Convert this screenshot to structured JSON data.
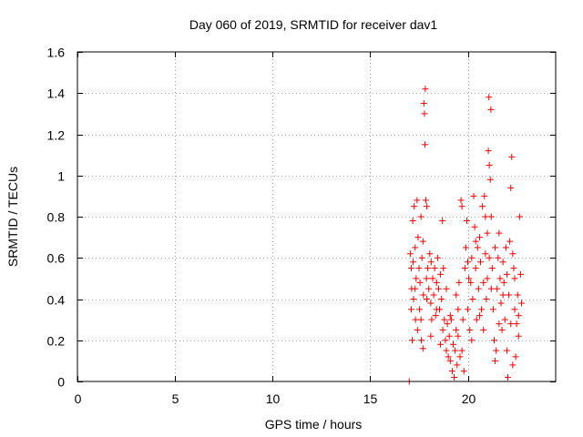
{
  "chart_data": {
    "type": "scatter",
    "title": "Day 060 of 2019, SRMTID for receiver dav1",
    "xlabel": "GPS time / hours",
    "ylabel": "SRMTID / TECUs",
    "xlim": [
      0,
      24.5
    ],
    "ylim": [
      0,
      1.6
    ],
    "xticks": [
      0,
      5,
      10,
      15,
      20
    ],
    "xtick_labels": [
      "0",
      "5",
      "10",
      "15",
      "20"
    ],
    "yticks": [
      0,
      0.2,
      0.4,
      0.6,
      0.8,
      1.0,
      1.2,
      1.4,
      1.6
    ],
    "ytick_labels": [
      "0",
      "0.2",
      "0.4",
      "0.6",
      "0.8",
      "1",
      "1.2",
      "1.4",
      "1.6"
    ],
    "grid": true,
    "marker": "+",
    "marker_color": "#ff0000",
    "series": [
      {
        "name": "dav1",
        "points": [
          [
            17.0,
            0.0
          ],
          [
            17.05,
            0.62
          ],
          [
            17.1,
            0.35
          ],
          [
            17.12,
            0.45
          ],
          [
            17.15,
            0.2
          ],
          [
            17.18,
            0.78
          ],
          [
            17.2,
            0.58
          ],
          [
            17.22,
            0.4
          ],
          [
            17.25,
            0.85
          ],
          [
            17.3,
            0.65
          ],
          [
            17.32,
            0.3
          ],
          [
            17.35,
            0.5
          ],
          [
            17.4,
            0.88
          ],
          [
            17.42,
            0.25
          ],
          [
            17.45,
            0.7
          ],
          [
            17.5,
            0.55
          ],
          [
            17.52,
            0.35
          ],
          [
            17.55,
            0.48
          ],
          [
            17.6,
            0.8
          ],
          [
            17.62,
            0.2
          ],
          [
            17.65,
            0.6
          ],
          [
            17.7,
            0.16
          ],
          [
            17.72,
            0.42
          ],
          [
            17.75,
            1.35
          ],
          [
            17.78,
            1.3
          ],
          [
            17.8,
            1.15
          ],
          [
            17.82,
            1.42
          ],
          [
            17.85,
            0.88
          ],
          [
            17.88,
            0.5
          ],
          [
            17.9,
            0.85
          ],
          [
            17.95,
            0.55
          ],
          [
            18.0,
            0.45
          ],
          [
            18.05,
            0.62
          ],
          [
            18.1,
            0.38
          ],
          [
            18.12,
            0.58
          ],
          [
            18.15,
            0.3
          ],
          [
            18.2,
            0.5
          ],
          [
            18.25,
            0.42
          ],
          [
            18.3,
            0.55
          ],
          [
            18.35,
            0.32
          ],
          [
            18.4,
            0.48
          ],
          [
            18.45,
            0.6
          ],
          [
            18.5,
            0.45
          ],
          [
            18.55,
            0.35
          ],
          [
            18.6,
            0.52
          ],
          [
            18.65,
            0.4
          ],
          [
            18.7,
            0.78
          ],
          [
            18.72,
            0.25
          ],
          [
            18.75,
            0.55
          ],
          [
            18.8,
            0.3
          ],
          [
            18.85,
            0.2
          ],
          [
            18.9,
            0.15
          ],
          [
            18.95,
            0.28
          ],
          [
            19.0,
            0.12
          ],
          [
            19.05,
            0.22
          ],
          [
            19.1,
            0.1
          ],
          [
            19.15,
            0.3
          ],
          [
            19.2,
            0.05
          ],
          [
            19.25,
            0.18
          ],
          [
            19.3,
            0.02
          ],
          [
            19.35,
            0.15
          ],
          [
            19.4,
            0.25
          ],
          [
            19.45,
            0.08
          ],
          [
            19.5,
            0.35
          ],
          [
            19.55,
            0.48
          ],
          [
            19.6,
            0.12
          ],
          [
            19.65,
            0.88
          ],
          [
            19.7,
            0.85
          ],
          [
            19.75,
            0.3
          ],
          [
            19.8,
            0.05
          ],
          [
            19.85,
            0.55
          ],
          [
            19.9,
            0.65
          ],
          [
            19.95,
            0.78
          ],
          [
            20.0,
            0.35
          ],
          [
            20.05,
            0.5
          ],
          [
            20.1,
            0.25
          ],
          [
            20.15,
            0.48
          ],
          [
            20.2,
            0.6
          ],
          [
            20.25,
            0.4
          ],
          [
            20.3,
            0.9
          ],
          [
            20.35,
            0.75
          ],
          [
            20.4,
            0.55
          ],
          [
            20.45,
            0.3
          ],
          [
            20.5,
            0.65
          ],
          [
            20.55,
            0.45
          ],
          [
            20.6,
            0.7
          ],
          [
            20.65,
            0.58
          ],
          [
            20.7,
            0.35
          ],
          [
            20.75,
            0.85
          ],
          [
            20.8,
            0.48
          ],
          [
            20.85,
            0.9
          ],
          [
            20.9,
            0.62
          ],
          [
            20.95,
            0.4
          ],
          [
            21.0,
            0.72
          ],
          [
            21.05,
            1.12
          ],
          [
            21.08,
            1.38
          ],
          [
            21.1,
            1.05
          ],
          [
            21.15,
            0.98
          ],
          [
            21.18,
            1.32
          ],
          [
            21.2,
            0.8
          ],
          [
            21.25,
            0.55
          ],
          [
            21.3,
            0.35
          ],
          [
            21.35,
            0.2
          ],
          [
            21.4,
            0.1
          ],
          [
            21.45,
            0.15
          ],
          [
            21.5,
            0.45
          ],
          [
            21.55,
            0.6
          ],
          [
            21.6,
            0.72
          ],
          [
            21.65,
            0.5
          ],
          [
            21.7,
            0.38
          ],
          [
            21.75,
            0.25
          ],
          [
            21.8,
            0.58
          ],
          [
            21.85,
            0.48
          ],
          [
            21.9,
            0.3
          ],
          [
            21.95,
            0.65
          ],
          [
            22.0,
            0.15
          ],
          [
            22.05,
            0.02
          ],
          [
            22.1,
            0.42
          ],
          [
            22.15,
            0.68
          ],
          [
            22.2,
            0.94
          ],
          [
            22.25,
            1.09
          ],
          [
            22.3,
            0.62
          ],
          [
            22.35,
            0.55
          ],
          [
            22.4,
            0.35
          ],
          [
            22.45,
            0.12
          ],
          [
            22.5,
            0.28
          ],
          [
            22.55,
            0.42
          ],
          [
            22.6,
            0.32
          ],
          [
            22.65,
            0.8
          ],
          [
            22.7,
            0.52
          ],
          [
            22.75,
            0.38
          ],
          [
            17.1,
            0.55
          ],
          [
            17.3,
            0.45
          ],
          [
            17.6,
            0.3
          ],
          [
            17.9,
            0.4
          ],
          [
            18.1,
            0.22
          ],
          [
            18.4,
            0.35
          ],
          [
            18.9,
            0.45
          ],
          [
            19.1,
            0.32
          ],
          [
            19.4,
            0.42
          ],
          [
            19.7,
            0.15
          ],
          [
            20.0,
            0.58
          ],
          [
            20.2,
            0.2
          ],
          [
            20.4,
            0.68
          ],
          [
            20.6,
            0.32
          ],
          [
            20.8,
            0.25
          ],
          [
            21.0,
            0.5
          ],
          [
            21.2,
            0.45
          ],
          [
            21.4,
            0.65
          ],
          [
            21.6,
            0.28
          ],
          [
            21.8,
            0.42
          ],
          [
            22.0,
            0.52
          ],
          [
            22.2,
            0.28
          ],
          [
            22.4,
            0.5
          ],
          [
            22.6,
            0.22
          ],
          [
            19.5,
            0.22
          ],
          [
            18.6,
            0.18
          ],
          [
            21.1,
            0.6
          ],
          [
            20.9,
            0.8
          ],
          [
            17.7,
            0.68
          ],
          [
            22.3,
            0.08
          ]
        ]
      }
    ]
  }
}
